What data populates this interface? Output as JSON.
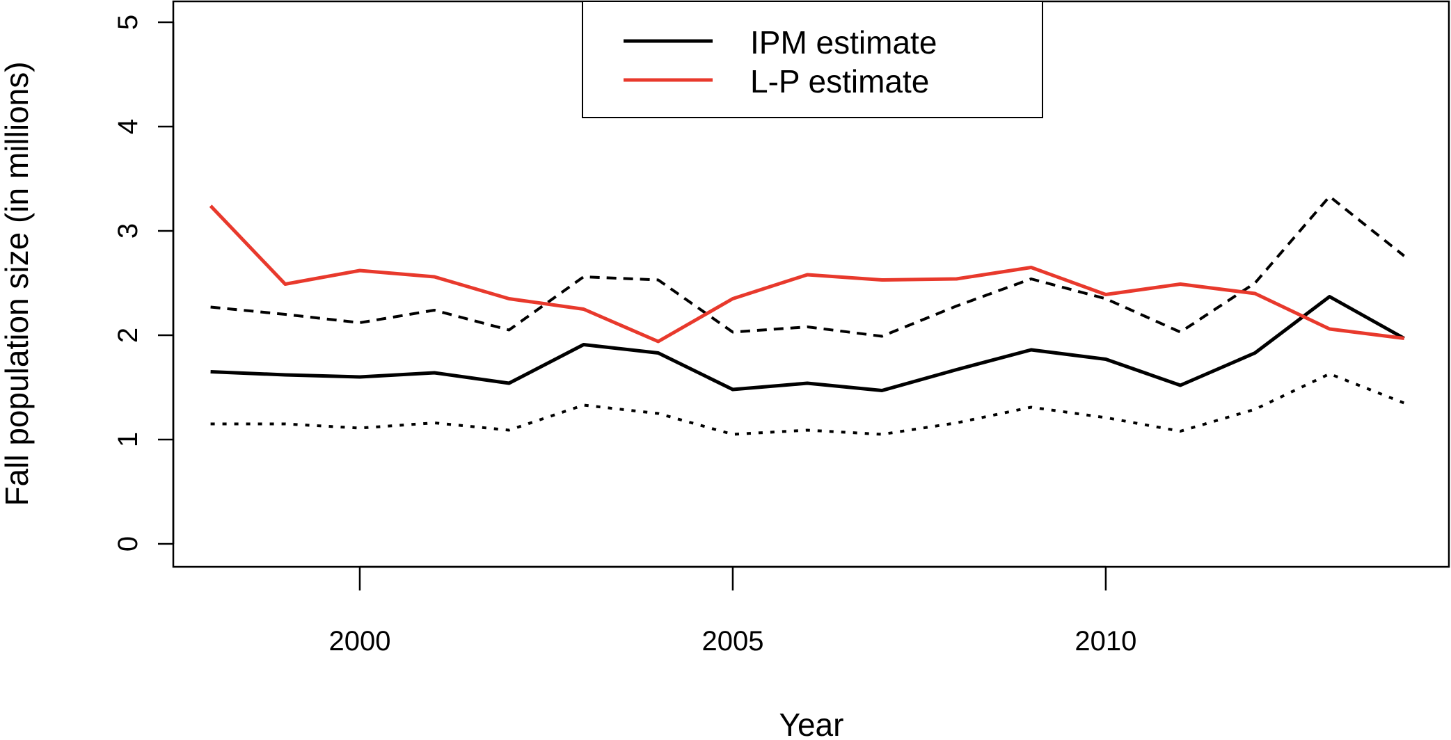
{
  "chart_data": {
    "type": "line",
    "title": "",
    "xlabel": "Year",
    "ylabel": "Fall population size (in millions)",
    "xlim": [
      1997.5,
      2014.6
    ],
    "ylim": [
      -0.22,
      5.2
    ],
    "x_ticks": [
      2000,
      2005,
      2010
    ],
    "y_ticks": [
      0,
      1,
      2,
      3,
      4,
      5
    ],
    "grid": false,
    "legend_position": "top-center",
    "x": [
      1998,
      1999,
      2000,
      2001,
      2002,
      2003,
      2004,
      2005,
      2006,
      2007,
      2008,
      2009,
      2010,
      2011,
      2012,
      2013,
      2014
    ],
    "series": [
      {
        "name": "IPM estimate",
        "role": "estimate",
        "in_legend": true,
        "color": "#000000",
        "style": "solid",
        "values": [
          1.65,
          1.62,
          1.6,
          1.64,
          1.54,
          1.91,
          1.83,
          1.48,
          1.54,
          1.47,
          1.67,
          1.86,
          1.77,
          1.52,
          1.83,
          2.37,
          1.97
        ]
      },
      {
        "name": "L-P estimate",
        "role": "estimate",
        "in_legend": true,
        "color": "#e8392c",
        "style": "solid",
        "values": [
          3.24,
          2.49,
          2.62,
          2.56,
          2.35,
          2.25,
          1.94,
          2.35,
          2.58,
          2.53,
          2.54,
          2.65,
          2.39,
          2.49,
          2.4,
          2.06,
          1.97
        ]
      },
      {
        "role": "upper-bound",
        "in_legend": false,
        "color": "#000000",
        "style": "dashed",
        "values": [
          2.27,
          2.2,
          2.12,
          2.24,
          2.05,
          2.56,
          2.53,
          2.03,
          2.08,
          1.99,
          2.28,
          2.54,
          2.35,
          2.03,
          2.5,
          3.33,
          2.76
        ]
      },
      {
        "role": "lower-bound",
        "in_legend": false,
        "color": "#000000",
        "style": "dotted",
        "values": [
          1.15,
          1.15,
          1.11,
          1.16,
          1.09,
          1.33,
          1.25,
          1.05,
          1.09,
          1.05,
          1.16,
          1.31,
          1.21,
          1.08,
          1.29,
          1.63,
          1.35
        ]
      }
    ]
  }
}
